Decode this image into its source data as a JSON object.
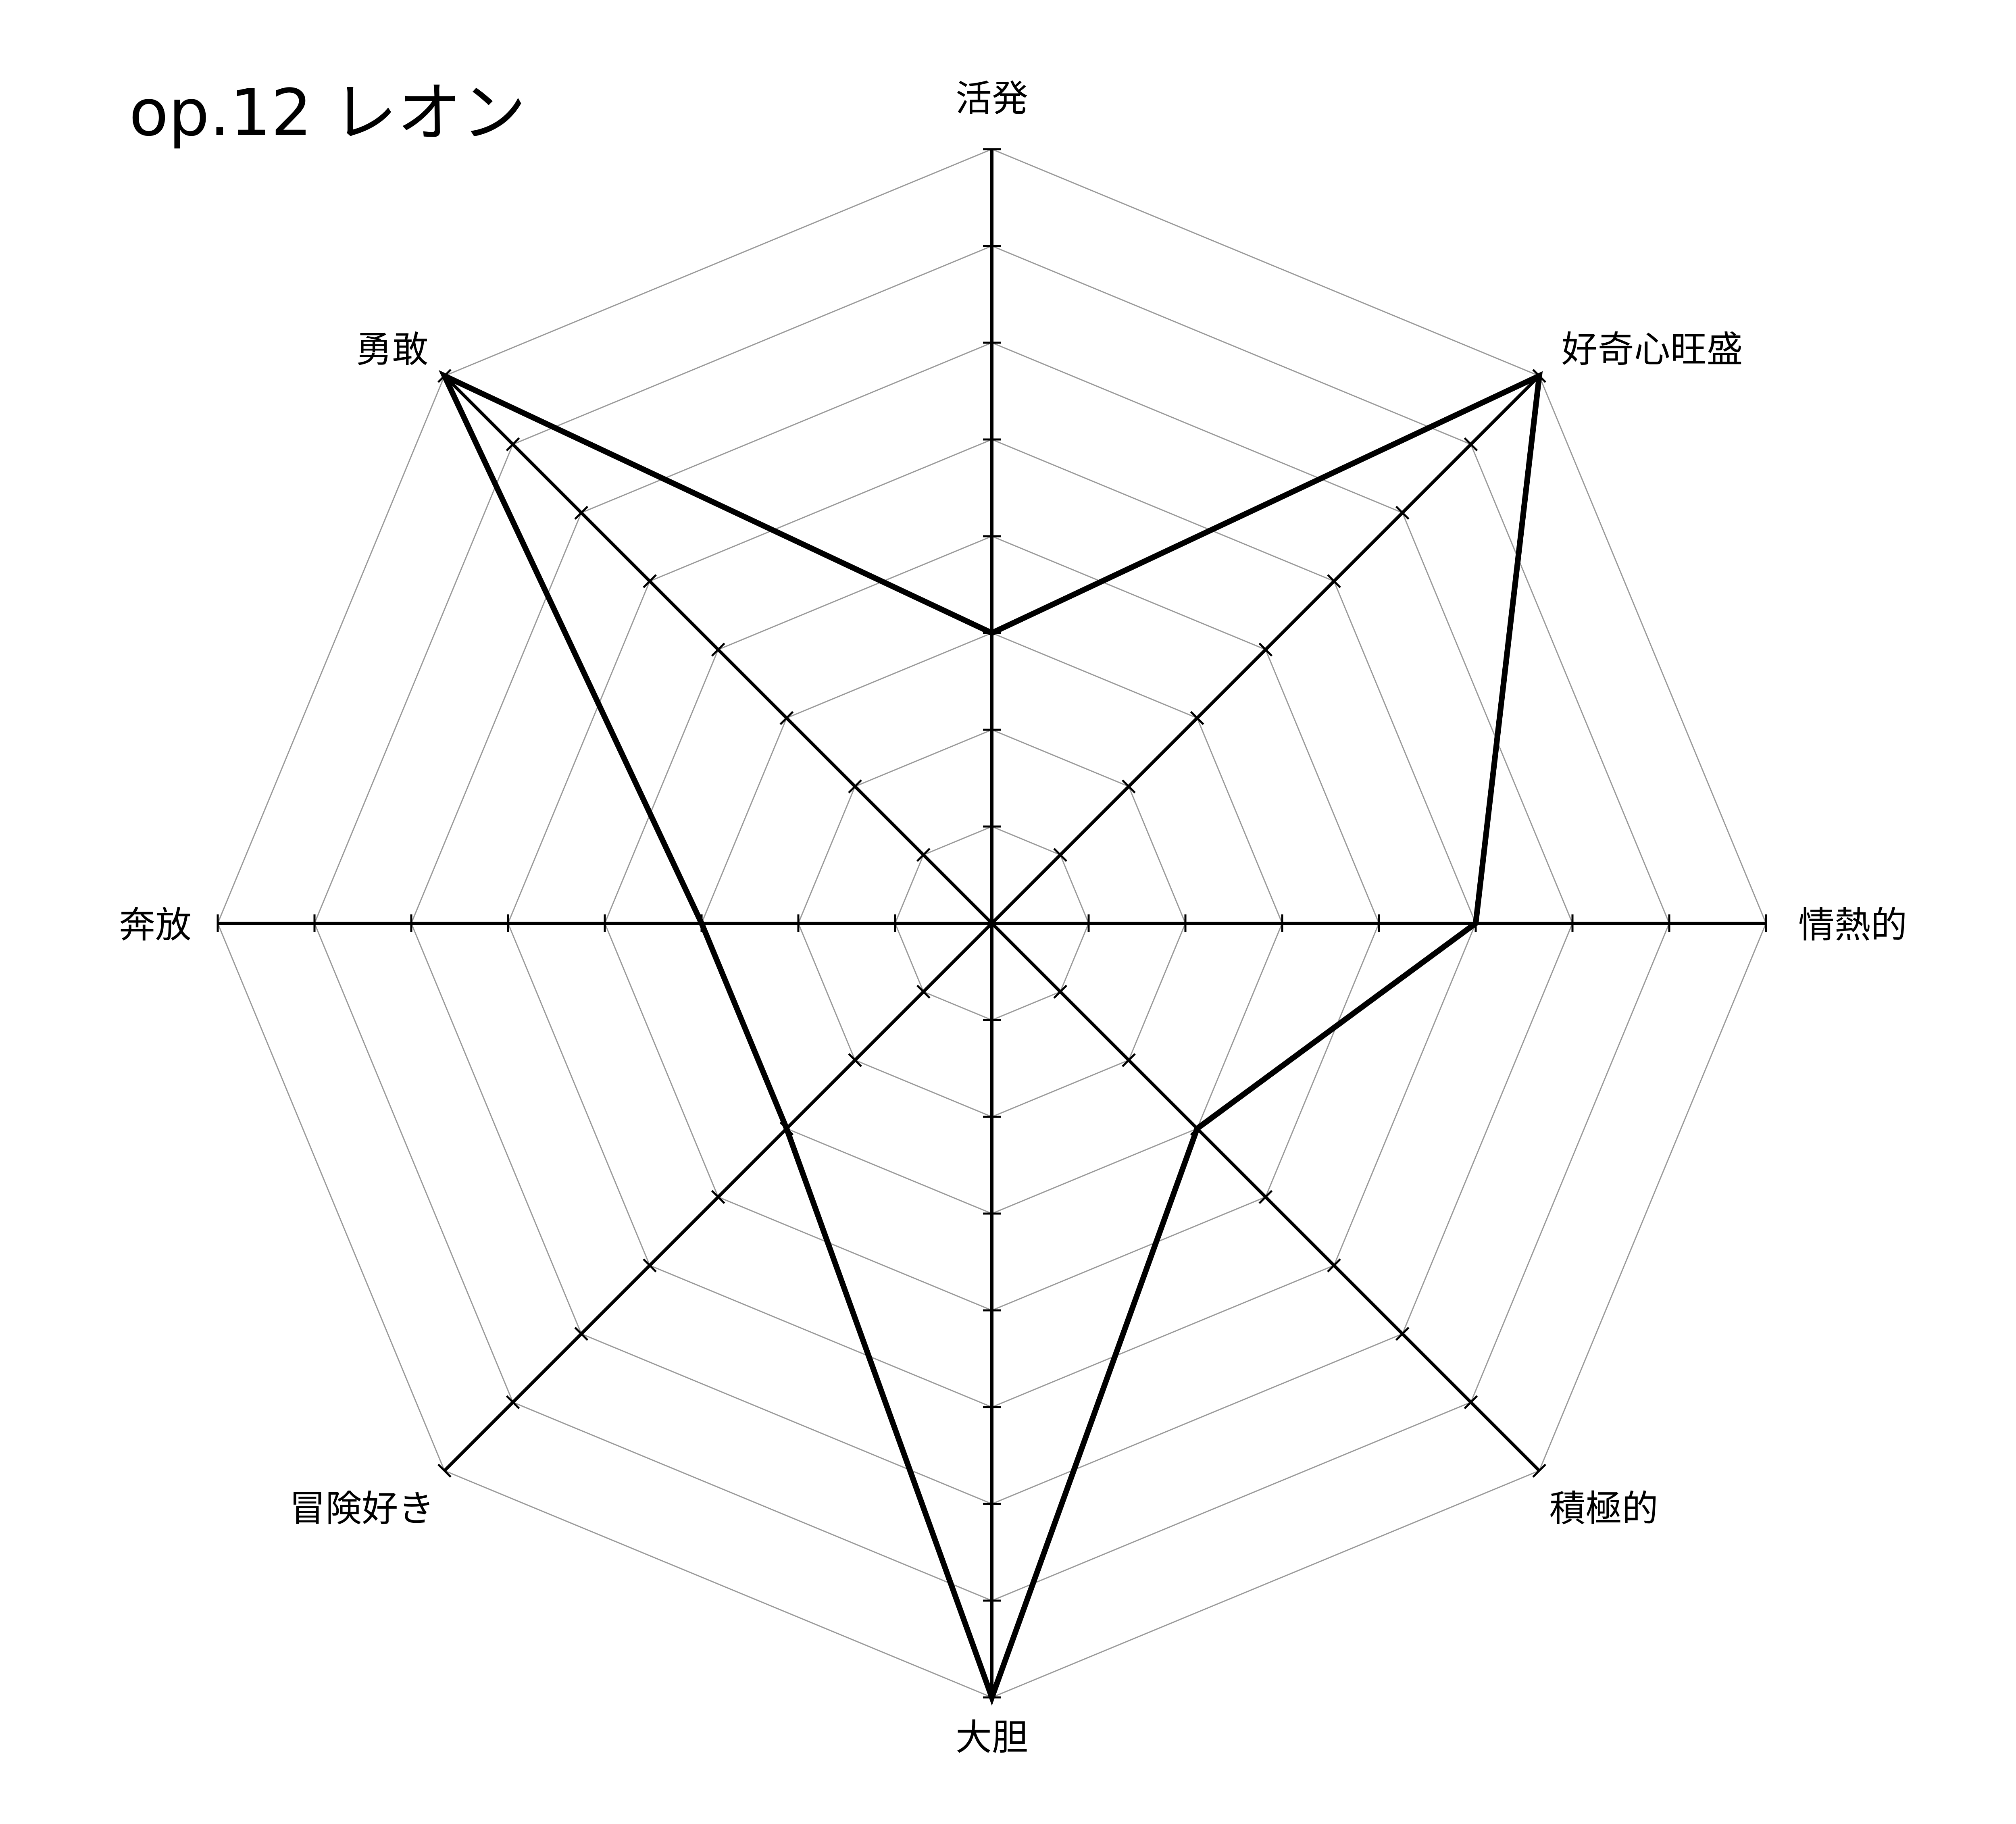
{
  "chart_data": {
    "type": "radar",
    "title": "op.12 レオン",
    "axes": [
      "活発",
      "好奇心旺盛",
      "情熱的",
      "積極的",
      "大胆",
      "冒険好き",
      "奔放",
      "勇敢"
    ],
    "values": [
      3,
      8,
      5,
      3,
      8,
      3,
      3,
      8
    ],
    "rlim": [
      0,
      8
    ],
    "ticks": [
      1,
      2,
      3,
      4,
      5,
      6,
      7,
      8
    ],
    "grid": true,
    "grid_shape": "octagon",
    "colors": {
      "series": "#000000",
      "axis": "#000000",
      "grid": "#9a9a9a"
    }
  }
}
